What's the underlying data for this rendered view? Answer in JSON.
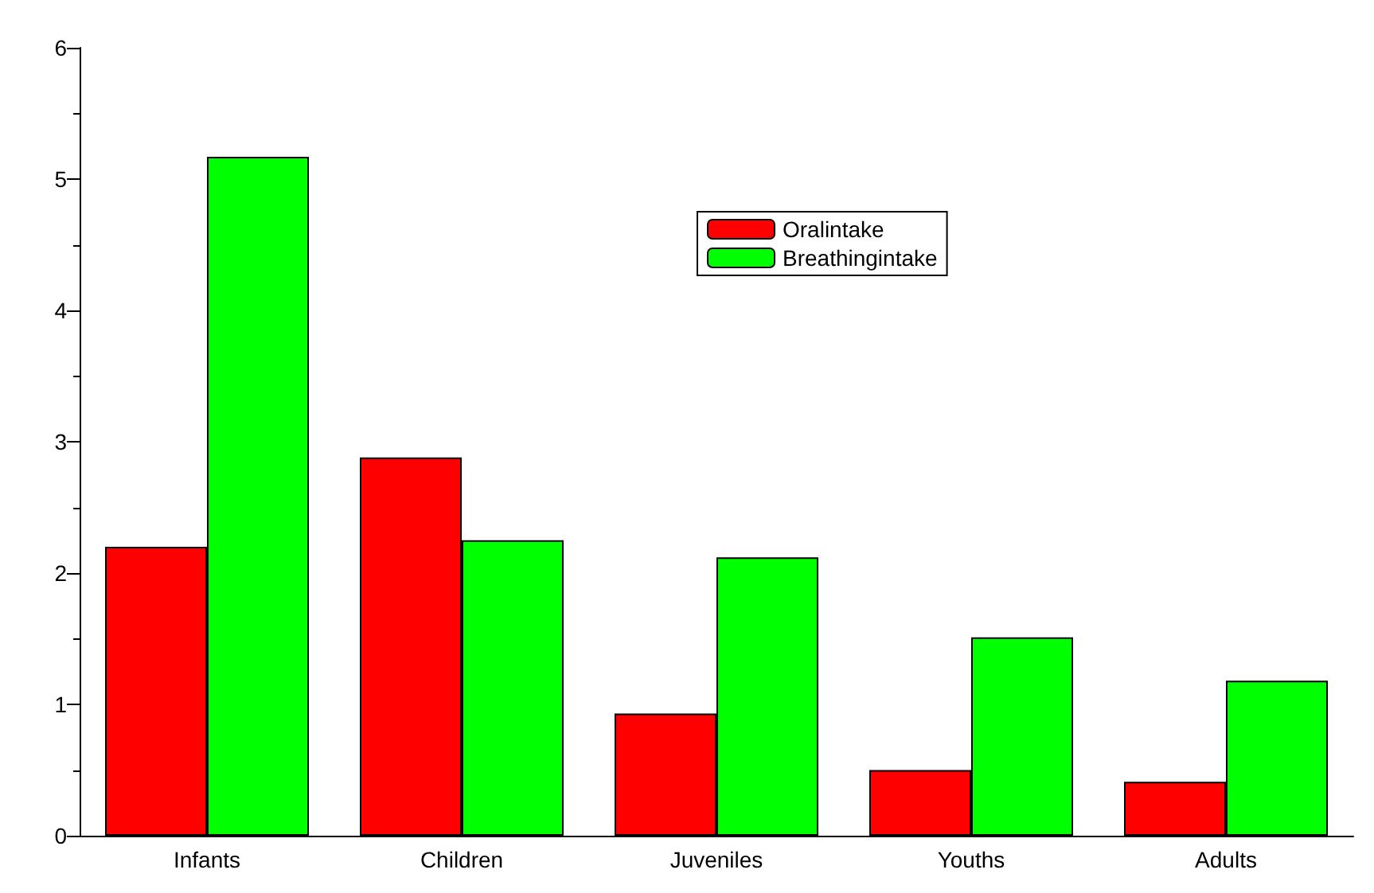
{
  "chart_data": {
    "type": "bar",
    "categories": [
      "Infants",
      "Children",
      "Juveniles",
      "Youths",
      "Adults"
    ],
    "series": [
      {
        "name": "Oralintake",
        "color": "#ff0000",
        "values": [
          2.2,
          2.88,
          0.93,
          0.5,
          0.41
        ]
      },
      {
        "name": "Breathingintake",
        "color": "#00ff00",
        "values": [
          5.17,
          2.25,
          2.12,
          1.51,
          1.18
        ]
      }
    ],
    "ylim": [
      0,
      6
    ],
    "yticks": [
      0,
      1,
      2,
      3,
      4,
      5,
      6
    ],
    "grid": false,
    "legend": "top right"
  }
}
